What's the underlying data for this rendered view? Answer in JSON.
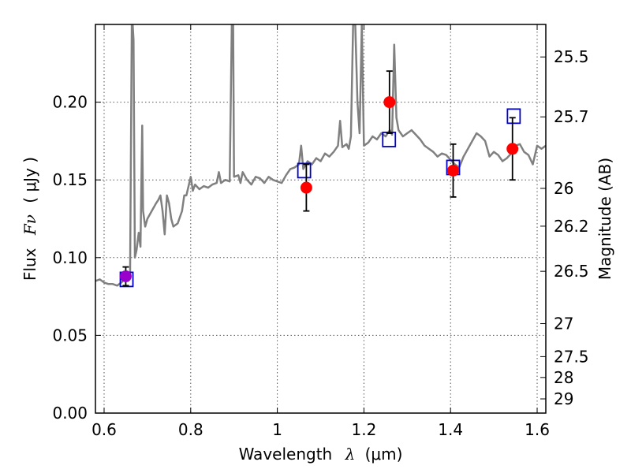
{
  "chart_data": {
    "type": "scatter",
    "xlabel": "Wavelength",
    "xlabel_math": "λ",
    "xlabel_unit": "(μm)",
    "ylabel": "Flux",
    "ylabel_math": "Fν",
    "ylabel_unit": "( μJy )",
    "y2label": "Magnitude (AB)",
    "xlim": [
      0.58,
      1.62
    ],
    "ylim": [
      0.0,
      0.25
    ],
    "grid": true,
    "x_ticks": [
      0.6,
      0.8,
      1.0,
      1.2,
      1.4,
      1.6
    ],
    "x_tick_labels": [
      "0.6",
      "0.8",
      "1",
      "1.2",
      "1.4",
      "1.6"
    ],
    "y_ticks": [
      0.0,
      0.05,
      0.1,
      0.15,
      0.2
    ],
    "y_tick_labels": [
      "0.00",
      "0.05",
      "0.10",
      "0.15",
      "0.20"
    ],
    "y2_ticks": [
      {
        "label": "25.5",
        "mag": 25.5
      },
      {
        "label": "25.7",
        "mag": 25.7
      },
      {
        "label": "26",
        "mag": 26.0
      },
      {
        "label": "26.2",
        "mag": 26.2
      },
      {
        "label": "26.5",
        "mag": 26.5
      },
      {
        "label": "27",
        "mag": 27.0
      },
      {
        "label": "27.5",
        "mag": 27.5
      },
      {
        "label": "28",
        "mag": 28.0
      },
      {
        "label": "29",
        "mag": 29.0
      }
    ],
    "colors": {
      "spectrum": "#808080",
      "observed": "#ff0000",
      "observed_first": "#9900cc",
      "model": "#0000cc",
      "error": "#000000",
      "grid": "#555555"
    },
    "spectrum": [
      [
        0.58,
        0.085
      ],
      [
        0.59,
        0.086
      ],
      [
        0.6,
        0.084
      ],
      [
        0.61,
        0.083
      ],
      [
        0.62,
        0.083
      ],
      [
        0.63,
        0.082
      ],
      [
        0.64,
        0.084
      ],
      [
        0.65,
        0.087
      ],
      [
        0.655,
        0.085
      ],
      [
        0.66,
        0.088
      ],
      [
        0.664,
        0.25
      ],
      [
        0.666,
        0.25
      ],
      [
        0.668,
        0.24
      ],
      [
        0.671,
        0.1
      ],
      [
        0.675,
        0.105
      ],
      [
        0.68,
        0.116
      ],
      [
        0.684,
        0.107
      ],
      [
        0.688,
        0.185
      ],
      [
        0.69,
        0.13
      ],
      [
        0.695,
        0.12
      ],
      [
        0.7,
        0.125
      ],
      [
        0.71,
        0.13
      ],
      [
        0.72,
        0.135
      ],
      [
        0.725,
        0.137
      ],
      [
        0.73,
        0.14
      ],
      [
        0.735,
        0.13
      ],
      [
        0.74,
        0.115
      ],
      [
        0.745,
        0.14
      ],
      [
        0.75,
        0.135
      ],
      [
        0.755,
        0.125
      ],
      [
        0.76,
        0.12
      ],
      [
        0.77,
        0.122
      ],
      [
        0.78,
        0.13
      ],
      [
        0.785,
        0.14
      ],
      [
        0.79,
        0.14
      ],
      [
        0.8,
        0.152
      ],
      [
        0.805,
        0.143
      ],
      [
        0.81,
        0.147
      ],
      [
        0.82,
        0.144
      ],
      [
        0.83,
        0.146
      ],
      [
        0.84,
        0.145
      ],
      [
        0.85,
        0.147
      ],
      [
        0.86,
        0.148
      ],
      [
        0.865,
        0.155
      ],
      [
        0.87,
        0.148
      ],
      [
        0.88,
        0.15
      ],
      [
        0.89,
        0.149
      ],
      [
        0.895,
        0.25
      ],
      [
        0.898,
        0.25
      ],
      [
        0.9,
        0.152
      ],
      [
        0.91,
        0.153
      ],
      [
        0.915,
        0.148
      ],
      [
        0.92,
        0.155
      ],
      [
        0.93,
        0.15
      ],
      [
        0.94,
        0.147
      ],
      [
        0.95,
        0.152
      ],
      [
        0.96,
        0.151
      ],
      [
        0.97,
        0.148
      ],
      [
        0.98,
        0.152
      ],
      [
        0.99,
        0.15
      ],
      [
        1.0,
        0.149
      ],
      [
        1.01,
        0.148
      ],
      [
        1.02,
        0.153
      ],
      [
        1.03,
        0.157
      ],
      [
        1.04,
        0.158
      ],
      [
        1.05,
        0.16
      ],
      [
        1.055,
        0.172
      ],
      [
        1.06,
        0.157
      ],
      [
        1.07,
        0.162
      ],
      [
        1.08,
        0.16
      ],
      [
        1.09,
        0.164
      ],
      [
        1.1,
        0.162
      ],
      [
        1.11,
        0.167
      ],
      [
        1.12,
        0.165
      ],
      [
        1.13,
        0.168
      ],
      [
        1.14,
        0.172
      ],
      [
        1.145,
        0.188
      ],
      [
        1.15,
        0.171
      ],
      [
        1.16,
        0.173
      ],
      [
        1.165,
        0.17
      ],
      [
        1.17,
        0.178
      ],
      [
        1.175,
        0.25
      ],
      [
        1.18,
        0.25
      ],
      [
        1.185,
        0.2
      ],
      [
        1.19,
        0.18
      ],
      [
        1.195,
        0.25
      ],
      [
        1.2,
        0.172
      ],
      [
        1.21,
        0.174
      ],
      [
        1.22,
        0.178
      ],
      [
        1.23,
        0.176
      ],
      [
        1.24,
        0.18
      ],
      [
        1.25,
        0.178
      ],
      [
        1.26,
        0.182
      ],
      [
        1.265,
        0.179
      ],
      [
        1.27,
        0.237
      ],
      [
        1.275,
        0.19
      ],
      [
        1.28,
        0.182
      ],
      [
        1.29,
        0.178
      ],
      [
        1.3,
        0.18
      ],
      [
        1.31,
        0.182
      ],
      [
        1.32,
        0.179
      ],
      [
        1.33,
        0.176
      ],
      [
        1.34,
        0.172
      ],
      [
        1.35,
        0.17
      ],
      [
        1.36,
        0.168
      ],
      [
        1.37,
        0.165
      ],
      [
        1.38,
        0.167
      ],
      [
        1.39,
        0.166
      ],
      [
        1.4,
        0.163
      ],
      [
        1.41,
        0.16
      ],
      [
        1.42,
        0.158
      ],
      [
        1.43,
        0.165
      ],
      [
        1.44,
        0.17
      ],
      [
        1.45,
        0.175
      ],
      [
        1.46,
        0.18
      ],
      [
        1.47,
        0.178
      ],
      [
        1.48,
        0.175
      ],
      [
        1.49,
        0.165
      ],
      [
        1.5,
        0.168
      ],
      [
        1.51,
        0.166
      ],
      [
        1.52,
        0.162
      ],
      [
        1.53,
        0.164
      ],
      [
        1.54,
        0.167
      ],
      [
        1.55,
        0.172
      ],
      [
        1.56,
        0.173
      ],
      [
        1.57,
        0.168
      ],
      [
        1.58,
        0.166
      ],
      [
        1.59,
        0.16
      ],
      [
        1.6,
        0.172
      ],
      [
        1.61,
        0.17
      ],
      [
        1.62,
        0.172
      ]
    ],
    "observed": [
      {
        "x": 0.65,
        "y": 0.088,
        "err": 0.006
      },
      {
        "x": 1.067,
        "y": 0.145,
        "err": 0.015
      },
      {
        "x": 1.259,
        "y": 0.2,
        "err": 0.02
      },
      {
        "x": 1.406,
        "y": 0.156,
        "err": 0.017
      },
      {
        "x": 1.543,
        "y": 0.17,
        "err": 0.02
      }
    ],
    "model": [
      {
        "x": 0.652,
        "y": 0.086
      },
      {
        "x": 1.062,
        "y": 0.156
      },
      {
        "x": 1.258,
        "y": 0.176
      },
      {
        "x": 1.406,
        "y": 0.158
      },
      {
        "x": 1.546,
        "y": 0.191
      }
    ]
  }
}
